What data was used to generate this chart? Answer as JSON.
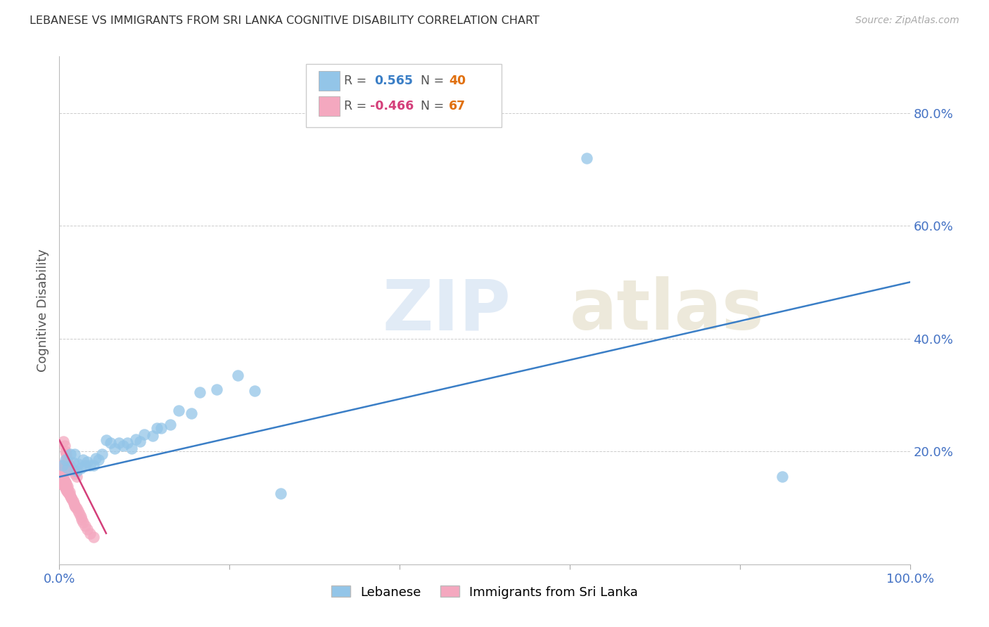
{
  "title": "LEBANESE VS IMMIGRANTS FROM SRI LANKA COGNITIVE DISABILITY CORRELATION CHART",
  "source": "Source: ZipAtlas.com",
  "ylabel": "Cognitive Disability",
  "xlim": [
    0.0,
    1.0
  ],
  "ylim": [
    0.0,
    0.9
  ],
  "xticks": [
    0.0,
    0.2,
    0.4,
    0.6,
    0.8,
    1.0
  ],
  "xtick_labels": [
    "0.0%",
    "",
    "",
    "",
    "",
    "100.0%"
  ],
  "ytick_labels": [
    "20.0%",
    "40.0%",
    "60.0%",
    "80.0%"
  ],
  "yticks": [
    0.2,
    0.4,
    0.6,
    0.8
  ],
  "blue_color": "#93c5e8",
  "pink_color": "#f4a8bf",
  "blue_line_color": "#3a7ec6",
  "pink_line_color": "#d43f7a",
  "tick_color": "#4472c4",
  "grid_color": "#cccccc",
  "title_color": "#333333",
  "blue_scatter_x": [
    0.004,
    0.007,
    0.01,
    0.013,
    0.016,
    0.018,
    0.02,
    0.022,
    0.025,
    0.028,
    0.03,
    0.033,
    0.036,
    0.04,
    0.043,
    0.046,
    0.05,
    0.055,
    0.06,
    0.065,
    0.07,
    0.075,
    0.08,
    0.085,
    0.09,
    0.095,
    0.1,
    0.11,
    0.115,
    0.12,
    0.13,
    0.14,
    0.155,
    0.165,
    0.185,
    0.21,
    0.23,
    0.26,
    0.62,
    0.85
  ],
  "blue_scatter_y": [
    0.175,
    0.185,
    0.17,
    0.195,
    0.18,
    0.195,
    0.165,
    0.178,
    0.17,
    0.185,
    0.175,
    0.182,
    0.175,
    0.175,
    0.188,
    0.185,
    0.195,
    0.22,
    0.215,
    0.205,
    0.215,
    0.21,
    0.215,
    0.205,
    0.222,
    0.218,
    0.23,
    0.228,
    0.242,
    0.242,
    0.248,
    0.273,
    0.268,
    0.305,
    0.31,
    0.335,
    0.308,
    0.126,
    0.72,
    0.155
  ],
  "pink_scatter_x": [
    0.001,
    0.001,
    0.001,
    0.001,
    0.001,
    0.002,
    0.002,
    0.002,
    0.002,
    0.002,
    0.003,
    0.003,
    0.003,
    0.003,
    0.004,
    0.004,
    0.004,
    0.004,
    0.005,
    0.005,
    0.005,
    0.005,
    0.006,
    0.006,
    0.006,
    0.007,
    0.007,
    0.007,
    0.008,
    0.008,
    0.008,
    0.009,
    0.009,
    0.01,
    0.01,
    0.01,
    0.011,
    0.012,
    0.012,
    0.013,
    0.014,
    0.015,
    0.016,
    0.017,
    0.018,
    0.019,
    0.02,
    0.022,
    0.024,
    0.025,
    0.026,
    0.028,
    0.03,
    0.033,
    0.036,
    0.04,
    0.005,
    0.006,
    0.007,
    0.008,
    0.009,
    0.01,
    0.012,
    0.014,
    0.016,
    0.018,
    0.02
  ],
  "pink_scatter_y": [
    0.155,
    0.16,
    0.165,
    0.17,
    0.175,
    0.148,
    0.152,
    0.158,
    0.162,
    0.168,
    0.145,
    0.15,
    0.155,
    0.16,
    0.142,
    0.148,
    0.152,
    0.158,
    0.14,
    0.145,
    0.15,
    0.155,
    0.138,
    0.143,
    0.148,
    0.135,
    0.14,
    0.145,
    0.132,
    0.138,
    0.143,
    0.13,
    0.135,
    0.128,
    0.133,
    0.138,
    0.125,
    0.123,
    0.128,
    0.12,
    0.118,
    0.115,
    0.112,
    0.108,
    0.105,
    0.102,
    0.1,
    0.095,
    0.09,
    0.085,
    0.08,
    0.075,
    0.068,
    0.062,
    0.055,
    0.048,
    0.218,
    0.21,
    0.2,
    0.195,
    0.188,
    0.182,
    0.175,
    0.17,
    0.165,
    0.16,
    0.155
  ],
  "blue_line_x": [
    0.0,
    1.0
  ],
  "blue_line_y": [
    0.155,
    0.5
  ],
  "pink_line_x": [
    0.0,
    0.055
  ],
  "pink_line_y": [
    0.22,
    0.055
  ]
}
